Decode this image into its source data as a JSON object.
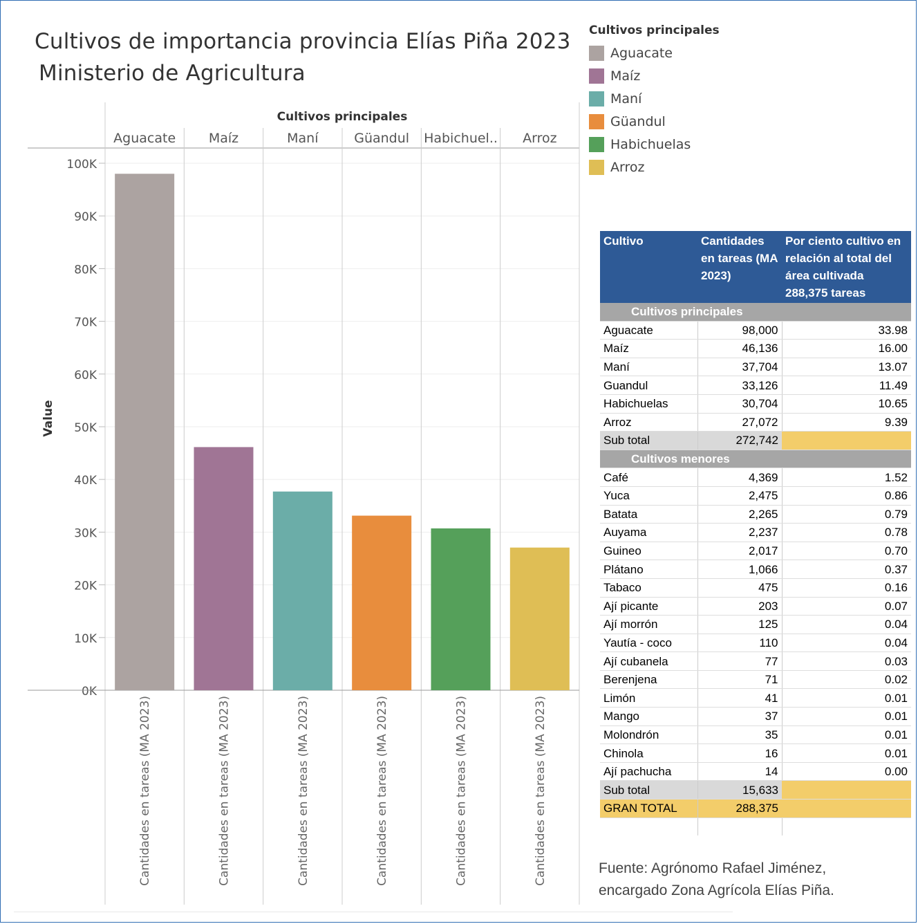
{
  "title_line1": "Cultivos de importancia provincia Elías Piña 2023",
  "title_line2": "Ministerio de Agricultura",
  "chart_data": {
    "type": "bar",
    "header": "Cultivos principales",
    "categories": [
      "Aguacate",
      "Maíz",
      "Maní",
      "Güandul",
      "Habichuelas",
      "Arroz"
    ],
    "category_display": [
      "Aguacate",
      "Maíz",
      "Maní",
      "Güandul",
      "Habichuel..",
      "Arroz"
    ],
    "values": [
      98000,
      46136,
      37704,
      33126,
      30704,
      27072
    ],
    "colors": [
      "#aca3a1",
      "#a07595",
      "#6bada8",
      "#e88d3d",
      "#55a05a",
      "#dfbe55"
    ],
    "ylabel": "Value",
    "xlabel": "Cantidades en tareas (MA 2023)",
    "ylim": [
      0,
      100000
    ],
    "yticks": [
      0,
      10000,
      20000,
      30000,
      40000,
      50000,
      60000,
      70000,
      80000,
      90000,
      100000
    ],
    "ytick_labels": [
      "0K",
      "10K",
      "20K",
      "30K",
      "40K",
      "50K",
      "60K",
      "70K",
      "80K",
      "90K",
      "100K"
    ],
    "grid": true
  },
  "legend": {
    "title": "Cultivos principales",
    "items": [
      {
        "label": "Aguacate",
        "color": "#aca3a1"
      },
      {
        "label": "Maíz",
        "color": "#a07595"
      },
      {
        "label": "Maní",
        "color": "#6bada8"
      },
      {
        "label": "Güandul",
        "color": "#e88d3d"
      },
      {
        "label": "Habichuelas",
        "color": "#55a05a"
      },
      {
        "label": "Arroz",
        "color": "#dfbe55"
      }
    ]
  },
  "table": {
    "headers": [
      "Cultivo",
      "Cantidades en tareas (MA 2023)",
      "Por ciento cultivo en relación al total del área cultivada 288,375 tareas"
    ],
    "section1": "Cultivos principales",
    "principales": [
      [
        "Aguacate",
        "98,000",
        "33.98"
      ],
      [
        "Maíz",
        "46,136",
        "16.00"
      ],
      [
        "Maní",
        "37,704",
        "13.07"
      ],
      [
        "Guandul",
        "33,126",
        "11.49"
      ],
      [
        "Habichuelas",
        "30,704",
        "10.65"
      ],
      [
        "Arroz",
        "27,072",
        "9.39"
      ]
    ],
    "subtotal1": [
      "Sub total",
      "272,742"
    ],
    "section2": "Cultivos menores",
    "menores": [
      [
        "Café",
        "4,369",
        "1.52"
      ],
      [
        "Yuca",
        "2,475",
        "0.86"
      ],
      [
        "Batata",
        "2,265",
        "0.79"
      ],
      [
        "Auyama",
        "2,237",
        "0.78"
      ],
      [
        "Guineo",
        "2,017",
        "0.70"
      ],
      [
        "Plátano",
        "1,066",
        "0.37"
      ],
      [
        "Tabaco",
        "475",
        "0.16"
      ],
      [
        "Ají picante",
        "203",
        "0.07"
      ],
      [
        "Ají morrón",
        "125",
        "0.04"
      ],
      [
        "Yautía - coco",
        "110",
        "0.04"
      ],
      [
        "Ají cubanela",
        "77",
        "0.03"
      ],
      [
        "Berenjena",
        "71",
        "0.02"
      ],
      [
        "Limón",
        "41",
        "0.01"
      ],
      [
        "Mango",
        "37",
        "0.01"
      ],
      [
        "Molondrón",
        "35",
        "0.01"
      ],
      [
        "Chinola",
        "16",
        "0.01"
      ],
      [
        "Ají pachucha",
        "14",
        "0.00"
      ]
    ],
    "subtotal2": [
      "Sub total",
      "15,633"
    ],
    "grand_total": [
      "GRAN TOTAL",
      "288,375"
    ]
  },
  "source_line1": "Fuente:  Agrónomo Rafael Jiménez,",
  "source_line2": "encargado Zona Agrícola Elías Piña."
}
